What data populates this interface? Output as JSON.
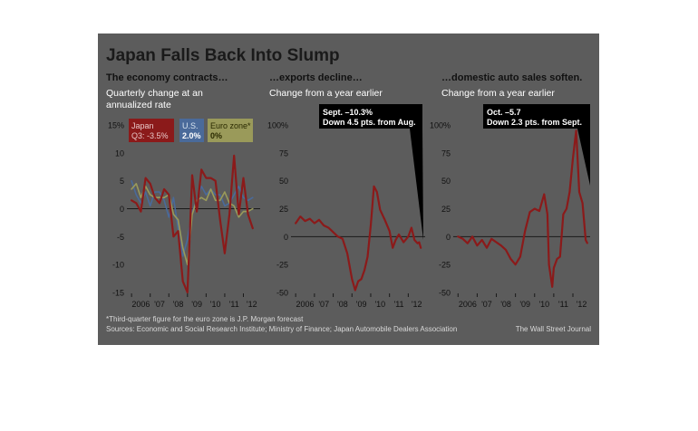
{
  "title": "Japan Falls Back Into Slump",
  "footnote": "*Third-quarter figure for the euro zone is J.P. Morgan forecast",
  "sources": "Sources: Economic and Social Research Institute; Ministry of Finance; Japan Automobile Dealers Association",
  "credit": "The Wall Street Journal",
  "colors": {
    "frame": "#5c5c5c",
    "japan": "#8b1a1a",
    "us": "#4a6a9a",
    "euro": "#9a9a5a",
    "zero_line": "#1a1a1a"
  },
  "chart_data": [
    {
      "type": "line",
      "title": "The economy contracts…",
      "subtitle_lines": [
        "Quarterly change at an",
        "annualized rate"
      ],
      "ylim": [
        -15,
        15
      ],
      "y_ticks": [
        "15%",
        "10",
        "5",
        "0",
        "-5",
        "-10",
        "-15"
      ],
      "x_tick_labels": [
        "2006",
        "'07",
        "'08",
        "'09",
        "'10",
        "'11",
        "'12"
      ],
      "legend": [
        {
          "label": "Japan",
          "value": "Q3: -3.5%"
        },
        {
          "label": "U.S.",
          "value": "2.0%"
        },
        {
          "label": "Euro zone*",
          "value": "0%"
        }
      ],
      "series": [
        {
          "name": "Japan",
          "x": [
            2006.0,
            2006.25,
            2006.5,
            2006.75,
            2007.0,
            2007.25,
            2007.5,
            2007.75,
            2008.0,
            2008.25,
            2008.5,
            2008.75,
            2009.0,
            2009.25,
            2009.5,
            2009.75,
            2010.0,
            2010.25,
            2010.5,
            2010.75,
            2011.0,
            2011.25,
            2011.5,
            2011.75,
            2012.0,
            2012.25,
            2012.5
          ],
          "values": [
            1.5,
            1.0,
            -0.5,
            5.5,
            4.5,
            2.0,
            1.0,
            3.5,
            2.5,
            -5.0,
            -4.0,
            -13.0,
            -15.0,
            6.0,
            -0.5,
            7.0,
            5.5,
            5.5,
            5.0,
            -2.0,
            -8.0,
            -1.0,
            9.5,
            -1.0,
            5.5,
            -1.0,
            -3.5
          ]
        },
        {
          "name": "U.S.",
          "x": [
            2006.0,
            2006.25,
            2006.5,
            2006.75,
            2007.0,
            2007.25,
            2007.5,
            2007.75,
            2008.0,
            2008.25,
            2008.5,
            2008.75,
            2009.0,
            2009.25,
            2009.5,
            2009.75,
            2010.0,
            2010.25,
            2010.5,
            2010.75,
            2011.0,
            2011.25,
            2011.5,
            2011.75,
            2012.0,
            2012.25,
            2012.5
          ],
          "values": [
            5.0,
            2.5,
            1.0,
            3.0,
            0.5,
            3.0,
            3.0,
            1.5,
            -1.5,
            2.0,
            -3.5,
            -8.5,
            -5.5,
            -0.5,
            1.5,
            4.0,
            2.5,
            3.5,
            2.5,
            2.5,
            0.5,
            1.0,
            2.5,
            4.0,
            2.0,
            1.5,
            2.0
          ]
        },
        {
          "name": "Euro zone*",
          "x": [
            2006.0,
            2006.25,
            2006.5,
            2006.75,
            2007.0,
            2007.25,
            2007.5,
            2007.75,
            2008.0,
            2008.25,
            2008.5,
            2008.75,
            2009.0,
            2009.25,
            2009.5,
            2009.75,
            2010.0,
            2010.25,
            2010.5,
            2010.75,
            2011.0,
            2011.25,
            2011.5,
            2011.75,
            2012.0,
            2012.25,
            2012.5
          ],
          "values": [
            3.5,
            4.5,
            2.0,
            4.0,
            2.5,
            2.0,
            2.0,
            2.0,
            2.5,
            -1.0,
            -2.0,
            -7.0,
            -10.0,
            -1.0,
            1.5,
            2.0,
            1.5,
            3.5,
            1.5,
            1.5,
            3.0,
            1.0,
            0.5,
            -1.5,
            -0.5,
            -0.5,
            0.0
          ]
        }
      ]
    },
    {
      "type": "line",
      "title": "…exports decline…",
      "subtitle_lines": [
        "Change from a year earlier"
      ],
      "ylim": [
        -50,
        100
      ],
      "y_ticks": [
        "100%",
        "75",
        "50",
        "25",
        "0",
        "-25",
        "-50"
      ],
      "x_tick_labels": [
        "2006",
        "'07",
        "'08",
        "'09",
        "'10",
        "'11",
        "'12"
      ],
      "annotation_lines": [
        "Sept. –10.3%",
        "Down 4.5 pts. from Aug."
      ],
      "series": [
        {
          "name": "Japan",
          "x": [
            2006.0,
            2006.25,
            2006.5,
            2006.75,
            2007.0,
            2007.25,
            2007.5,
            2007.75,
            2008.0,
            2008.25,
            2008.5,
            2008.75,
            2009.0,
            2009.17,
            2009.33,
            2009.5,
            2009.67,
            2009.83,
            2010.0,
            2010.17,
            2010.33,
            2010.5,
            2010.75,
            2011.0,
            2011.17,
            2011.33,
            2011.5,
            2011.75,
            2012.0,
            2012.17,
            2012.33,
            2012.5,
            2012.58,
            2012.67
          ],
          "values": [
            12.0,
            18.0,
            14.0,
            16.0,
            12.0,
            15.0,
            10.0,
            8.0,
            4.0,
            0.0,
            -2.0,
            -15.0,
            -38.0,
            -48.0,
            -40.0,
            -38.0,
            -30.0,
            -18.0,
            10.0,
            45.0,
            40.0,
            24.0,
            15.0,
            5.0,
            -10.0,
            -3.0,
            2.0,
            -5.0,
            0.0,
            8.0,
            -3.0,
            -6.0,
            -5.0,
            -10.0
          ]
        }
      ]
    },
    {
      "type": "line",
      "title": "…domestic auto sales soften.",
      "subtitle_lines": [
        "Change from a year earlier"
      ],
      "ylim": [
        -50,
        100
      ],
      "y_ticks": [
        "100%",
        "75",
        "50",
        "25",
        "0",
        "-25",
        "-50"
      ],
      "x_tick_labels": [
        "2006",
        "'07",
        "'08",
        "'09",
        "'10",
        "'11",
        "'12"
      ],
      "annotation_lines": [
        "Oct. –5.7",
        "Down 2.3 pts. from Sept."
      ],
      "series": [
        {
          "name": "Japan",
          "x": [
            2006.0,
            2006.25,
            2006.5,
            2006.75,
            2007.0,
            2007.25,
            2007.5,
            2007.75,
            2008.0,
            2008.25,
            2008.5,
            2008.75,
            2009.0,
            2009.25,
            2009.5,
            2009.75,
            2010.0,
            2010.25,
            2010.5,
            2010.67,
            2010.75,
            2010.92,
            2011.0,
            2011.17,
            2011.33,
            2011.5,
            2011.67,
            2011.83,
            2012.0,
            2012.17,
            2012.33,
            2012.5,
            2012.67,
            2012.75
          ],
          "values": [
            0.0,
            -2.0,
            -6.0,
            0.0,
            -8.0,
            -3.0,
            -10.0,
            -2.0,
            -5.0,
            -8.0,
            -12.0,
            -20.0,
            -25.0,
            -18.0,
            5.0,
            22.0,
            25.0,
            23.0,
            38.0,
            20.0,
            -25.0,
            -45.0,
            -28.0,
            -20.0,
            -18.0,
            20.0,
            25.0,
            40.0,
            70.0,
            95.0,
            40.0,
            30.0,
            -3.0,
            -5.7
          ]
        }
      ]
    }
  ]
}
